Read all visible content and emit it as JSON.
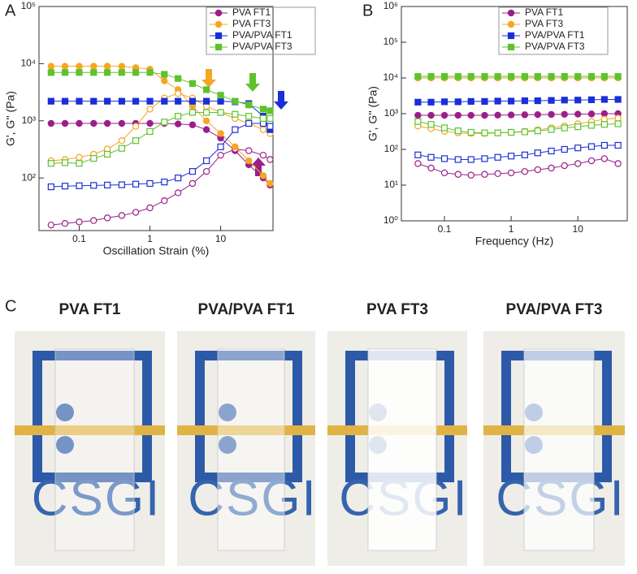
{
  "chart_data": [
    {
      "type": "line",
      "panel": "A",
      "xlabel": "Oscillation Strain (%)",
      "ylabel": "G', G'' (Pa)",
      "xlog": true,
      "ylog": true,
      "legend": "upper right",
      "xlim": [
        0.027,
        55
      ],
      "xticks": [
        0.1,
        1,
        10
      ],
      "ylim": [
        12,
        100000
      ],
      "yticks": [
        {
          "value": 100,
          "label": "10²"
        },
        {
          "value": 1000,
          "label": "10³"
        },
        {
          "value": 10000,
          "label": "10⁴"
        },
        {
          "value": 100000,
          "label": "10⁵"
        }
      ],
      "x": [
        0.04,
        0.063,
        0.1,
        0.16,
        0.25,
        0.4,
        0.63,
        1,
        1.6,
        2.5,
        4,
        6.3,
        10,
        16,
        25,
        40,
        50
      ],
      "series": [
        {
          "name": "PVA FT1",
          "color": "#9b1f8a",
          "marker": "circle",
          "values": [
            900,
            900,
            900,
            900,
            900,
            900,
            900,
            900,
            900,
            880,
            850,
            700,
            500,
            300,
            170,
            100,
            75
          ],
          "loss_values": [
            15,
            16,
            17,
            18,
            20,
            22,
            25,
            30,
            40,
            55,
            80,
            130,
            250,
            320,
            300,
            250,
            210
          ]
        },
        {
          "name": "PVA FT3",
          "color": "#f5a623",
          "marker": "circle",
          "values": [
            9000,
            9000,
            9000,
            9000,
            9000,
            9000,
            8500,
            8000,
            5000,
            3500,
            1800,
            1000,
            600,
            350,
            200,
            110,
            80
          ],
          "loss_values": [
            200,
            210,
            230,
            260,
            320,
            450,
            800,
            1600,
            2500,
            3000,
            2500,
            1800,
            1400,
            1100,
            900,
            700,
            600
          ]
        },
        {
          "name": "PVA/PVA FT1",
          "color": "#1a2fd6",
          "marker": "square",
          "values": [
            2200,
            2200,
            2200,
            2200,
            2200,
            2200,
            2200,
            2200,
            2200,
            2200,
            2200,
            2200,
            2200,
            2150,
            2000,
            1200,
            700
          ],
          "loss_values": [
            70,
            72,
            73,
            74,
            75,
            76,
            78,
            80,
            85,
            100,
            130,
            200,
            350,
            700,
            900,
            900,
            800
          ]
        },
        {
          "name": "PVA/PVA FT3",
          "color": "#5fc22c",
          "marker": "square",
          "values": [
            7000,
            7000,
            7000,
            7000,
            7000,
            7000,
            7000,
            7000,
            6500,
            5500,
            4500,
            3500,
            2800,
            2200,
            1900,
            1600,
            1500
          ],
          "loss_values": [
            180,
            185,
            180,
            220,
            260,
            330,
            450,
            650,
            950,
            1200,
            1400,
            1400,
            1400,
            1300,
            1200,
            1100,
            1100
          ]
        }
      ]
    },
    {
      "type": "line",
      "panel": "B",
      "xlabel": "Frequency (Hz)",
      "ylabel": "G', G'' (Pa)",
      "xlog": true,
      "ylog": true,
      "legend": "upper right",
      "xlim": [
        0.0226,
        55
      ],
      "xticks": [
        0.1,
        1,
        10
      ],
      "ylim": [
        1,
        1000000
      ],
      "yticks": [
        {
          "value": 1,
          "label": "10⁰"
        },
        {
          "value": 10,
          "label": "10¹"
        },
        {
          "value": 100,
          "label": "10²"
        },
        {
          "value": 1000,
          "label": "10³"
        },
        {
          "value": 10000,
          "label": "10⁴"
        },
        {
          "value": 100000,
          "label": "10⁵"
        },
        {
          "value": 1000000,
          "label": "10⁶"
        }
      ],
      "x": [
        0.04,
        0.063,
        0.1,
        0.16,
        0.25,
        0.4,
        0.63,
        1,
        1.6,
        2.5,
        4,
        6.3,
        10,
        16,
        25,
        40
      ],
      "series": [
        {
          "name": "PVA FT1",
          "color": "#9b1f8a",
          "marker": "circle",
          "values": [
            900,
            900,
            900,
            900,
            900,
            900,
            910,
            920,
            930,
            940,
            950,
            960,
            970,
            980,
            1000,
            1000
          ],
          "loss_values": [
            40,
            30,
            22,
            20,
            19,
            20,
            21,
            22,
            24,
            27,
            30,
            35,
            40,
            48,
            55,
            40
          ]
        },
        {
          "name": "PVA FT3",
          "color": "#f5a623",
          "marker": "circle",
          "values": [
            10000,
            10000,
            10000,
            10000,
            10000,
            10000,
            10000,
            10000,
            10000,
            10000,
            10000,
            10000,
            10000,
            10000,
            10000,
            10000
          ],
          "loss_values": [
            450,
            380,
            320,
            290,
            280,
            280,
            290,
            300,
            320,
            350,
            400,
            450,
            520,
            600,
            700,
            750
          ]
        },
        {
          "name": "PVA/PVA FT1",
          "color": "#1a2fd6",
          "marker": "square",
          "values": [
            2100,
            2100,
            2150,
            2150,
            2200,
            2200,
            2250,
            2250,
            2300,
            2300,
            2350,
            2400,
            2400,
            2450,
            2500,
            2500
          ],
          "loss_values": [
            70,
            60,
            55,
            52,
            52,
            55,
            60,
            65,
            70,
            80,
            90,
            100,
            110,
            120,
            130,
            130
          ]
        },
        {
          "name": "PVA/PVA FT3",
          "color": "#5fc22c",
          "marker": "square",
          "values": [
            11000,
            11000,
            11000,
            11000,
            11000,
            11000,
            11000,
            11000,
            11000,
            11000,
            11000,
            11000,
            11000,
            11000,
            11000,
            11000
          ],
          "loss_values": [
            600,
            500,
            400,
            330,
            300,
            290,
            290,
            300,
            310,
            330,
            360,
            400,
            430,
            470,
            500,
            520
          ]
        }
      ]
    }
  ],
  "photos": {
    "panel": "C",
    "logo_text": "CSGI",
    "titles": [
      "PVA FT1",
      "PVA/PVA FT1",
      "PVA FT3",
      "PVA/PVA FT3"
    ]
  }
}
